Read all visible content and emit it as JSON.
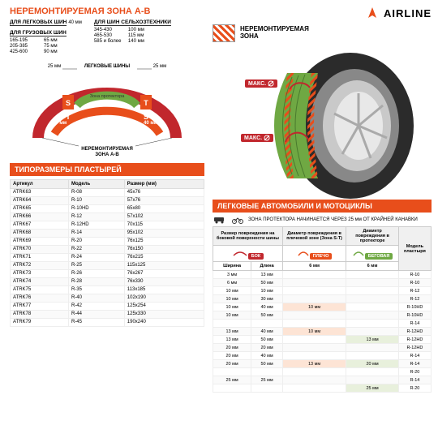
{
  "colors": {
    "orange": "#e84e1b",
    "dark": "#2b2b2b",
    "green": "#6fa843",
    "red": "#c1272d",
    "grey": "#888"
  },
  "brand": {
    "name": "AIRLINE",
    "icon_color": "#e84e1b"
  },
  "zone": {
    "title": "НЕРЕМОНТИРУЕМАЯ ЗОНА А-В",
    "passenger": {
      "label": "ДЛЯ ЛЕГКОВЫХ ШИН",
      "val": "40 мм"
    },
    "truck": {
      "label": "ДЛЯ ГРУЗОВЫХ ШИН",
      "rows": [
        {
          "dim": "165-195",
          "val": "65 мм"
        },
        {
          "dim": "205-385",
          "val": "75 мм"
        },
        {
          "dim": "425-600",
          "val": "90 мм"
        }
      ]
    },
    "agri": {
      "label": "ДЛЯ ШИН СЕЛЬХОЗТЕХНИКИ",
      "rows": [
        {
          "dim": "345-430",
          "val": "100 мм"
        },
        {
          "dim": "465-530",
          "val": "115 мм"
        },
        {
          "dim": "585 и более",
          "val": "140 мм"
        }
      ]
    },
    "diagram": {
      "top_left": "25 мм",
      "top_mid": "ЛЕГКОВЫЕ ШИНЫ",
      "top_right": "25 мм",
      "s": "S",
      "t": "T",
      "protector": "Зона протектора",
      "side": "40 мм",
      "truck_zone": "НЕРЕМОНТИРУЕМАЯ ЗОНА ДЛЯ ГРУЗОВЫХ ШИН",
      "ab": "НЕРЕМОНТИРУЕМАЯ ЗОНА А-В"
    }
  },
  "legend": {
    "label": "НЕРЕМОНТИРУЕМАЯ\nЗОНА"
  },
  "maks": "МАКС.",
  "patch_sizes": {
    "header": "ТИПОРАЗМЕРЫ ПЛАСТЫРЕЙ",
    "cols": [
      "Артикул",
      "Модель",
      "Размер (мм)"
    ],
    "rows": [
      [
        "ATRK63",
        "R-08",
        "45x76"
      ],
      [
        "ATRK64",
        "R-10",
        "57x76"
      ],
      [
        "ATRK65",
        "R-10HD",
        "65x80"
      ],
      [
        "ATRK66",
        "R-12",
        "57x102"
      ],
      [
        "ATRK67",
        "R-12HD",
        "70x115"
      ],
      [
        "ATRK68",
        "R-14",
        "95x102"
      ],
      [
        "ATRK69",
        "R-20",
        "76x125"
      ],
      [
        "ATRK70",
        "R-22",
        "76x150"
      ],
      [
        "ATRK71",
        "R-24",
        "76x215"
      ],
      [
        "ATRK72",
        "R-25",
        "115x125"
      ],
      [
        "ATRK73",
        "R-26",
        "76x267"
      ],
      [
        "ATRK74",
        "R-28",
        "76x330"
      ],
      [
        "ATRK75",
        "R-35",
        "113x185"
      ],
      [
        "ATRK76",
        "R-40",
        "102x190"
      ],
      [
        "ATRK77",
        "R-42",
        "125x254"
      ],
      [
        "ATRK78",
        "R-44",
        "125x330"
      ],
      [
        "ATRK79",
        "R-45",
        "190x240"
      ]
    ]
  },
  "right_section": {
    "header": "ЛЕГКОВЫЕ АВТОМОБИЛИ И МОТОЦИКЛЫ",
    "note": "ЗОНА ПРОТЕКТОРА НАЧИНАЕТСЯ ЧЕРЕЗ 25 мм ОТ КРАЙНЕЙ КАНАВКИ",
    "th1": "Размер повреждения на боковой поверхности шины",
    "th2": "Диаметр повреждения в плечевой зоне (Зона S-T)",
    "th3": "Диаметр повреждения в протекторе",
    "th4": "Модель пластыря",
    "bok": "БОК",
    "plecho": "ПЛЕЧО",
    "beg": "БЕГОВАЯ",
    "sub_w": "Ширина",
    "sub_l": "Длина",
    "max_val": "6 мм",
    "rows": [
      {
        "w": "3 мм",
        "l": "13 мм",
        "p": "",
        "b": "",
        "m": "R-10"
      },
      {
        "w": "6 мм",
        "l": "50 мм",
        "p": "",
        "b": "",
        "m": "R-10"
      },
      {
        "w": "10 мм",
        "l": "10 мм",
        "p": "",
        "b": "",
        "m": "R-12"
      },
      {
        "w": "10 мм",
        "l": "30 мм",
        "p": "",
        "b": "",
        "m": "R-12"
      },
      {
        "w": "10 мм",
        "l": "40 мм",
        "p": "10 мм",
        "b": "",
        "m": "R-10HD"
      },
      {
        "w": "10 мм",
        "l": "50 мм",
        "p": "",
        "b": "",
        "m": "R-10HD"
      },
      {
        "w": "",
        "l": "",
        "p": "",
        "b": "",
        "m": "R-14"
      },
      {
        "w": "13 мм",
        "l": "40 мм",
        "p": "10 мм",
        "b": "",
        "m": "R-12HD"
      },
      {
        "w": "13 мм",
        "l": "50 мм",
        "p": "",
        "b": "13 мм",
        "m": "R-12HD"
      },
      {
        "w": "20 мм",
        "l": "20 мм",
        "p": "",
        "b": "",
        "m": "R-12HD"
      },
      {
        "w": "20 мм",
        "l": "40 мм",
        "p": "",
        "b": "",
        "m": "R-14"
      },
      {
        "w": "20 мм",
        "l": "50 мм",
        "p": "13 мм",
        "b": "20 мм",
        "m": "R-14"
      },
      {
        "w": "",
        "l": "",
        "p": "",
        "b": "",
        "m": "R-20"
      },
      {
        "w": "25 мм",
        "l": "25 мм",
        "p": "",
        "b": "",
        "m": "R-14"
      },
      {
        "w": "",
        "l": "",
        "p": "",
        "b": "25 мм",
        "m": "R-20"
      }
    ]
  }
}
